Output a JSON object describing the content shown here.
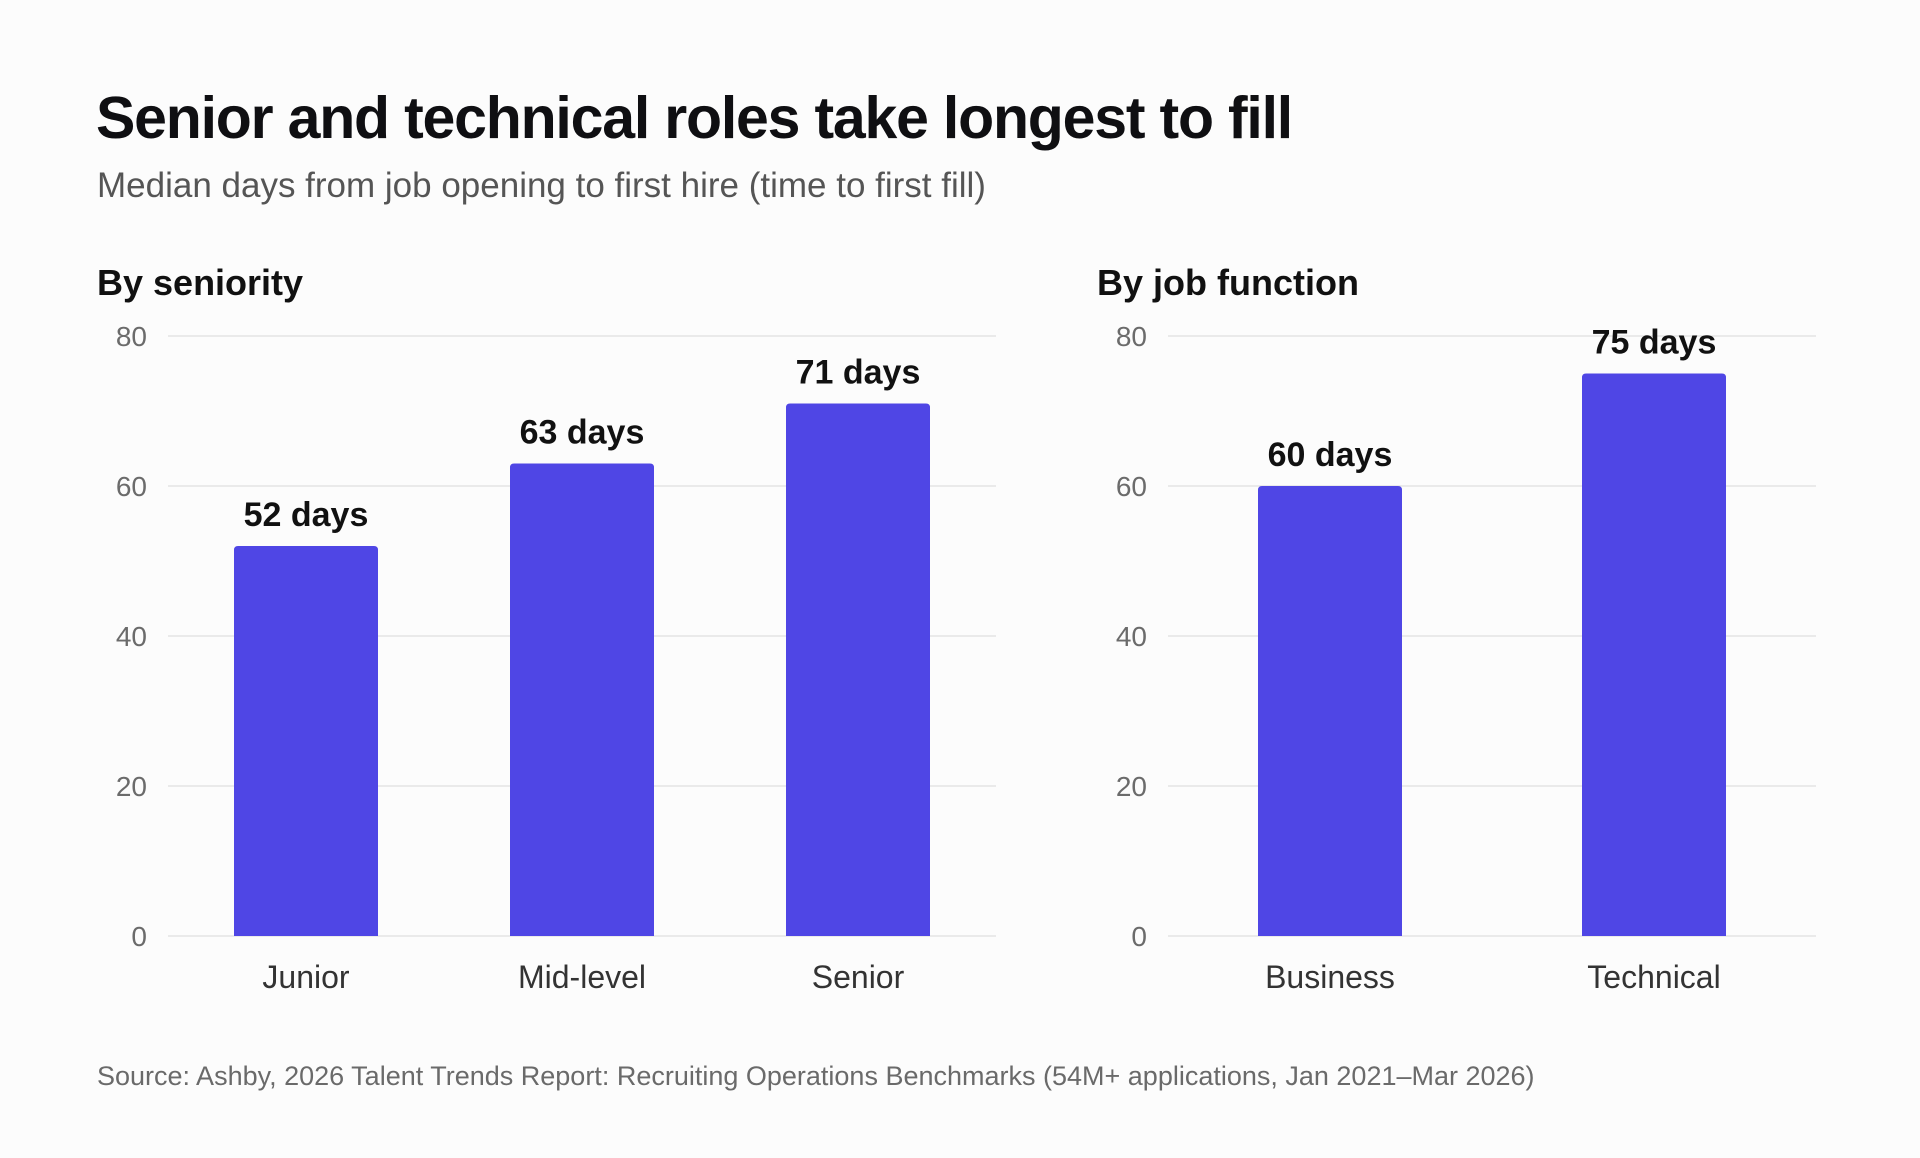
{
  "title": "Senior and technical roles take longest to fill",
  "subtitle": "Median days from job opening to first hire (time to first fill)",
  "source": "Source: Ashby, 2026 Talent Trends Report: Recruiting Operations Benchmarks (54M+ applications, Jan 2021–Mar 2026)",
  "colors": {
    "bar": "#4f46e5",
    "grid": "#e3e3e3",
    "tick_text": "#6b6b6b",
    "category_text": "#333333",
    "value_label": "#111111"
  },
  "chart_data": [
    {
      "type": "bar",
      "title": "By seniority",
      "categories": [
        "Junior",
        "Mid-level",
        "Senior"
      ],
      "values": [
        52,
        63,
        71
      ],
      "value_labels": [
        "52 days",
        "63 days",
        "71 days"
      ],
      "ylim": [
        0,
        80
      ],
      "yticks": [
        "0",
        "20",
        "40",
        "60",
        "80"
      ],
      "grid": true
    },
    {
      "type": "bar",
      "title": "By job function",
      "categories": [
        "Business",
        "Technical"
      ],
      "values": [
        60,
        75
      ],
      "value_labels": [
        "60 days",
        "75 days"
      ],
      "ylim": [
        0,
        80
      ],
      "yticks": [
        "0",
        "20",
        "40",
        "60",
        "80"
      ],
      "grid": true
    }
  ]
}
